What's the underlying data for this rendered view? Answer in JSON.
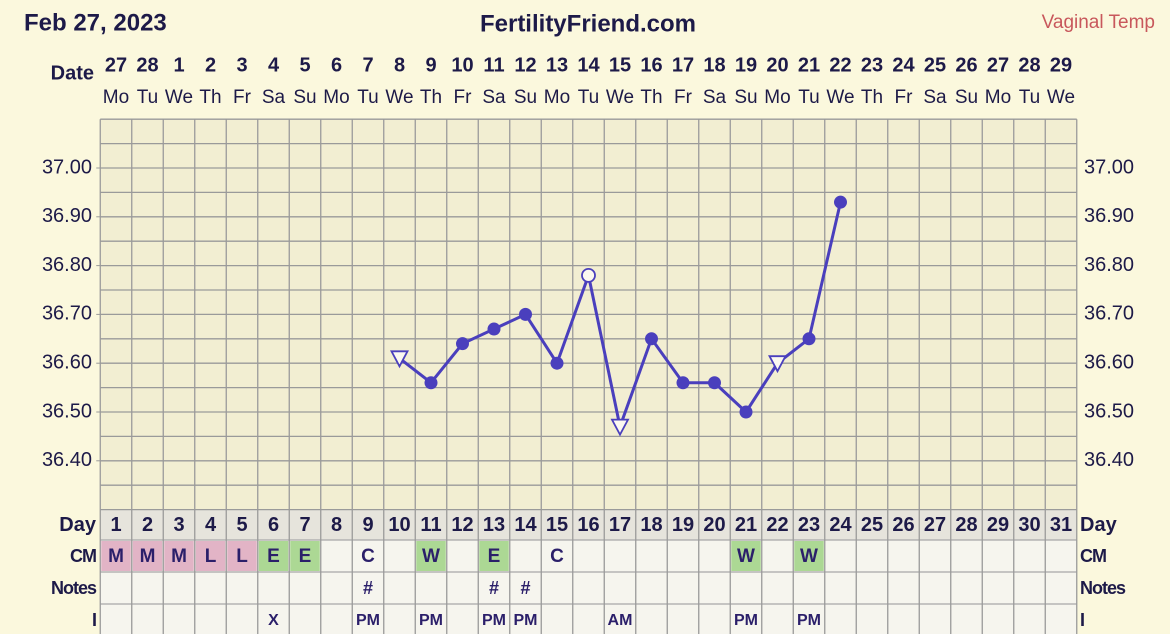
{
  "header": {
    "date": "Feb 27, 2023",
    "site": "FertilityFriend.com",
    "temp_type": "Vaginal Temp",
    "date_label": "Date"
  },
  "chart_data": {
    "type": "line",
    "categories": [
      1,
      2,
      3,
      4,
      5,
      6,
      7,
      8,
      9,
      10,
      11,
      12,
      13,
      14,
      15,
      16,
      17,
      18,
      19,
      20,
      21,
      22,
      23,
      24,
      25,
      26,
      27,
      28,
      29,
      30,
      31
    ],
    "dates": [
      "27",
      "28",
      "1",
      "2",
      "3",
      "4",
      "5",
      "6",
      "7",
      "8",
      "9",
      "10",
      "11",
      "12",
      "13",
      "14",
      "15",
      "16",
      "17",
      "18",
      "19",
      "20",
      "21",
      "22",
      "23",
      "24",
      "25",
      "26",
      "27",
      "28",
      "29"
    ],
    "weekdays": [
      "Mo",
      "Tu",
      "We",
      "Th",
      "Fr",
      "Sa",
      "Su",
      "Mo",
      "Tu",
      "We",
      "Th",
      "Fr",
      "Sa",
      "Su",
      "Mo",
      "Tu",
      "We",
      "Th",
      "Fr",
      "Sa",
      "Su",
      "Mo",
      "Tu",
      "We",
      "Th",
      "Fr",
      "Sa",
      "Su",
      "Mo",
      "Tu",
      "We"
    ],
    "series": [
      {
        "name": "Temperature",
        "color": "#4a3fbd",
        "values": [
          null,
          null,
          null,
          null,
          null,
          null,
          null,
          null,
          null,
          36.61,
          36.56,
          36.64,
          36.67,
          36.7,
          36.6,
          36.78,
          36.47,
          36.65,
          36.56,
          36.56,
          36.5,
          36.6,
          36.65,
          36.93,
          null,
          null,
          null,
          null,
          null,
          null,
          null
        ],
        "markers": [
          null,
          null,
          null,
          null,
          null,
          null,
          null,
          null,
          null,
          "open-triangle",
          "dot",
          "dot",
          "dot",
          "dot",
          "dot",
          "open-circle",
          "open-triangle",
          "dot",
          "dot",
          "dot",
          "dot",
          "open-triangle",
          "dot",
          "dot",
          null,
          null,
          null,
          null,
          null,
          null,
          null
        ]
      }
    ],
    "ylim": [
      36.3,
      37.1
    ],
    "yticks": [
      {
        "value": 36.4,
        "label": "36.40"
      },
      {
        "value": 36.5,
        "label": "36.50"
      },
      {
        "value": 36.6,
        "label": "36.60"
      },
      {
        "value": 36.7,
        "label": "36.70"
      },
      {
        "value": 36.8,
        "label": "36.80"
      },
      {
        "value": 36.9,
        "label": "36.90"
      },
      {
        "value": 37.0,
        "label": "37.00"
      }
    ],
    "y_gridlines": [
      36.3,
      36.35,
      36.4,
      36.45,
      36.5,
      36.55,
      36.6,
      36.65,
      36.7,
      36.75,
      36.8,
      36.85,
      36.9,
      36.95,
      37.0,
      37.05,
      37.1
    ],
    "grid": true
  },
  "table": {
    "row_labels": [
      "Day",
      "CM",
      "Notes",
      "I"
    ],
    "cm": [
      "M",
      "M",
      "M",
      "L",
      "L",
      "E",
      "E",
      null,
      "C",
      null,
      "W",
      null,
      "E",
      null,
      "C",
      null,
      null,
      null,
      null,
      null,
      "W",
      null,
      "W",
      null,
      null,
      null,
      null,
      null,
      null,
      null,
      null
    ],
    "cm_colors": {
      "M": "#e2b4c6",
      "L": "#e2b4c6",
      "E": "#acd894",
      "W": "#acd894"
    },
    "notes": [
      null,
      null,
      null,
      null,
      null,
      null,
      null,
      null,
      "#",
      null,
      null,
      null,
      "#",
      "#",
      null,
      null,
      null,
      null,
      null,
      null,
      null,
      null,
      null,
      null,
      null,
      null,
      null,
      null,
      null,
      null,
      null
    ],
    "intercourse": [
      null,
      null,
      null,
      null,
      null,
      "X",
      null,
      null,
      "PM",
      null,
      "PM",
      null,
      "PM",
      "PM",
      null,
      null,
      "AM",
      null,
      null,
      null,
      "PM",
      null,
      "PM",
      null,
      null,
      null,
      null,
      null,
      null,
      null,
      null
    ]
  }
}
